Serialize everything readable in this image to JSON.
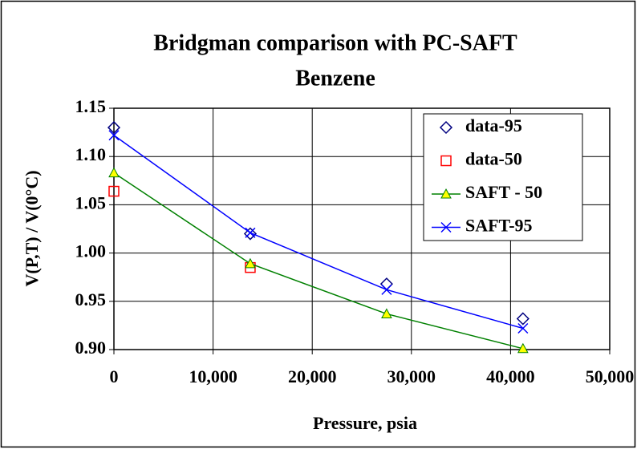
{
  "chart_data": {
    "type": "line",
    "title": "Bridgman comparison with PC-SAFT",
    "subtitle": "Benzene",
    "x_label": "Pressure, psia",
    "y_label": "V(P,T) / V(0°C)",
    "xlim": [
      0,
      50000
    ],
    "xticks": [
      0,
      {
        "value": 10000,
        "label": "10,000"
      },
      {
        "value": 20000,
        "label": "20,000"
      },
      {
        "value": 30000,
        "label": "30,000"
      },
      {
        "value": 40000,
        "label": "40,000"
      },
      {
        "value": 50000,
        "label": "50,000"
      }
    ],
    "ylim": [
      0.9,
      1.15
    ],
    "yticks": [
      {
        "value": 0.9,
        "label": "0.90"
      },
      0.95,
      {
        "value": 1.0,
        "label": "1.00"
      },
      1.05,
      {
        "value": 1.1,
        "label": "1.10"
      },
      1.15
    ],
    "grid": true,
    "legend": "upper right",
    "series": [
      {
        "name": "data-95",
        "color": "#000080",
        "marker": "diamond",
        "line": false,
        "x": [
          0,
          13750,
          27500,
          41250
        ],
        "values": [
          1.13,
          1.02,
          0.968,
          0.932
        ]
      },
      {
        "name": "data-50",
        "color": "#ff0000",
        "marker": "square",
        "line": false,
        "x": [
          0,
          13750
        ],
        "values": [
          1.064,
          0.985
        ]
      },
      {
        "name": "SAFT - 50",
        "color": "#008000",
        "marker": "triangle",
        "line": true,
        "x": [
          0,
          13750,
          27500,
          41250
        ],
        "values": [
          1.083,
          0.989,
          0.937,
          0.901
        ]
      },
      {
        "name": "SAFT-95",
        "color": "#0000ff",
        "marker": "x",
        "line": true,
        "x": [
          0,
          13750,
          27500,
          41250
        ],
        "values": [
          1.122,
          1.021,
          0.962,
          0.922
        ]
      }
    ]
  }
}
